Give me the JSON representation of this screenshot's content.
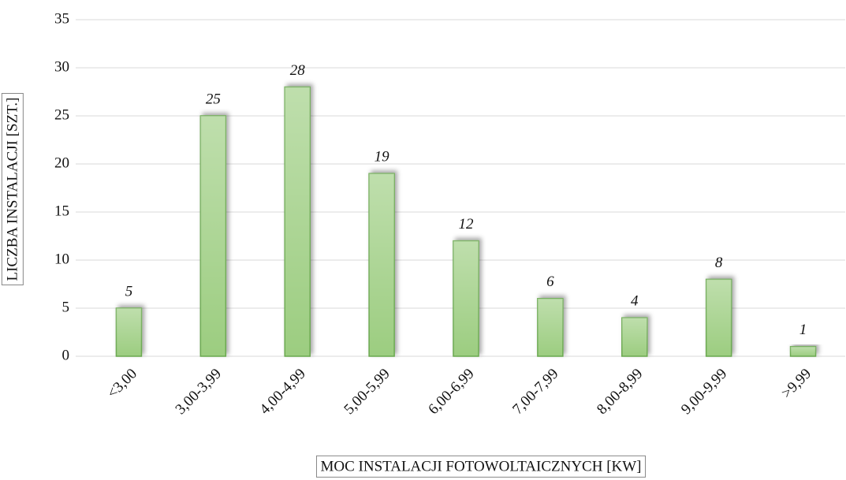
{
  "chart_data": {
    "type": "bar",
    "x_label": "MOC INSTALACJI FOTOWOLTAICZNYCH [KW]",
    "y_label": "LICZBA INSTALACJI  [SZT.]",
    "categories": [
      "<3,00",
      "3,00-3,99",
      "4,00-4,99",
      "5,00-5,99",
      "6,00-6,99",
      "7,00-7,99",
      "8,00-8,99",
      "9,00-9,99",
      ">9,99"
    ],
    "values": [
      5,
      25,
      28,
      19,
      12,
      6,
      4,
      8,
      1
    ],
    "color": "#9ccd80",
    "ylim": [
      0,
      35
    ],
    "yticks": [
      0,
      5,
      10,
      15,
      20,
      25,
      30,
      35
    ],
    "grid": true
  }
}
